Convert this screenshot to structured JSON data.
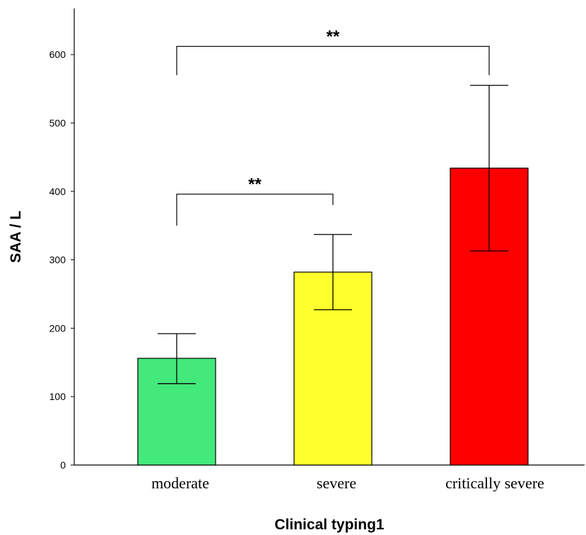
{
  "chart_data": {
    "type": "bar",
    "title": "",
    "xlabel": "Clinical typing1",
    "ylabel": "SAA / L",
    "ylim": [
      0,
      660
    ],
    "yticks": [
      0,
      100,
      200,
      300,
      400,
      500,
      600
    ],
    "grid": false,
    "categories": [
      "moderate",
      "severe",
      "critically severe"
    ],
    "values": [
      156,
      282,
      434
    ],
    "error_low": [
      119,
      227,
      313
    ],
    "error_high": [
      192,
      337,
      555
    ],
    "colors": [
      "#43e97b",
      "#ffff2e",
      "#ff0000"
    ],
    "bar_edge_color": "#000000",
    "significance": [
      {
        "label": "**",
        "from": 0,
        "to": 1,
        "y": 396,
        "left_end": 350,
        "right_end": 380
      },
      {
        "label": "**",
        "from": 0,
        "to": 2,
        "y": 612,
        "left_end": 570,
        "right_end": 570
      }
    ]
  }
}
